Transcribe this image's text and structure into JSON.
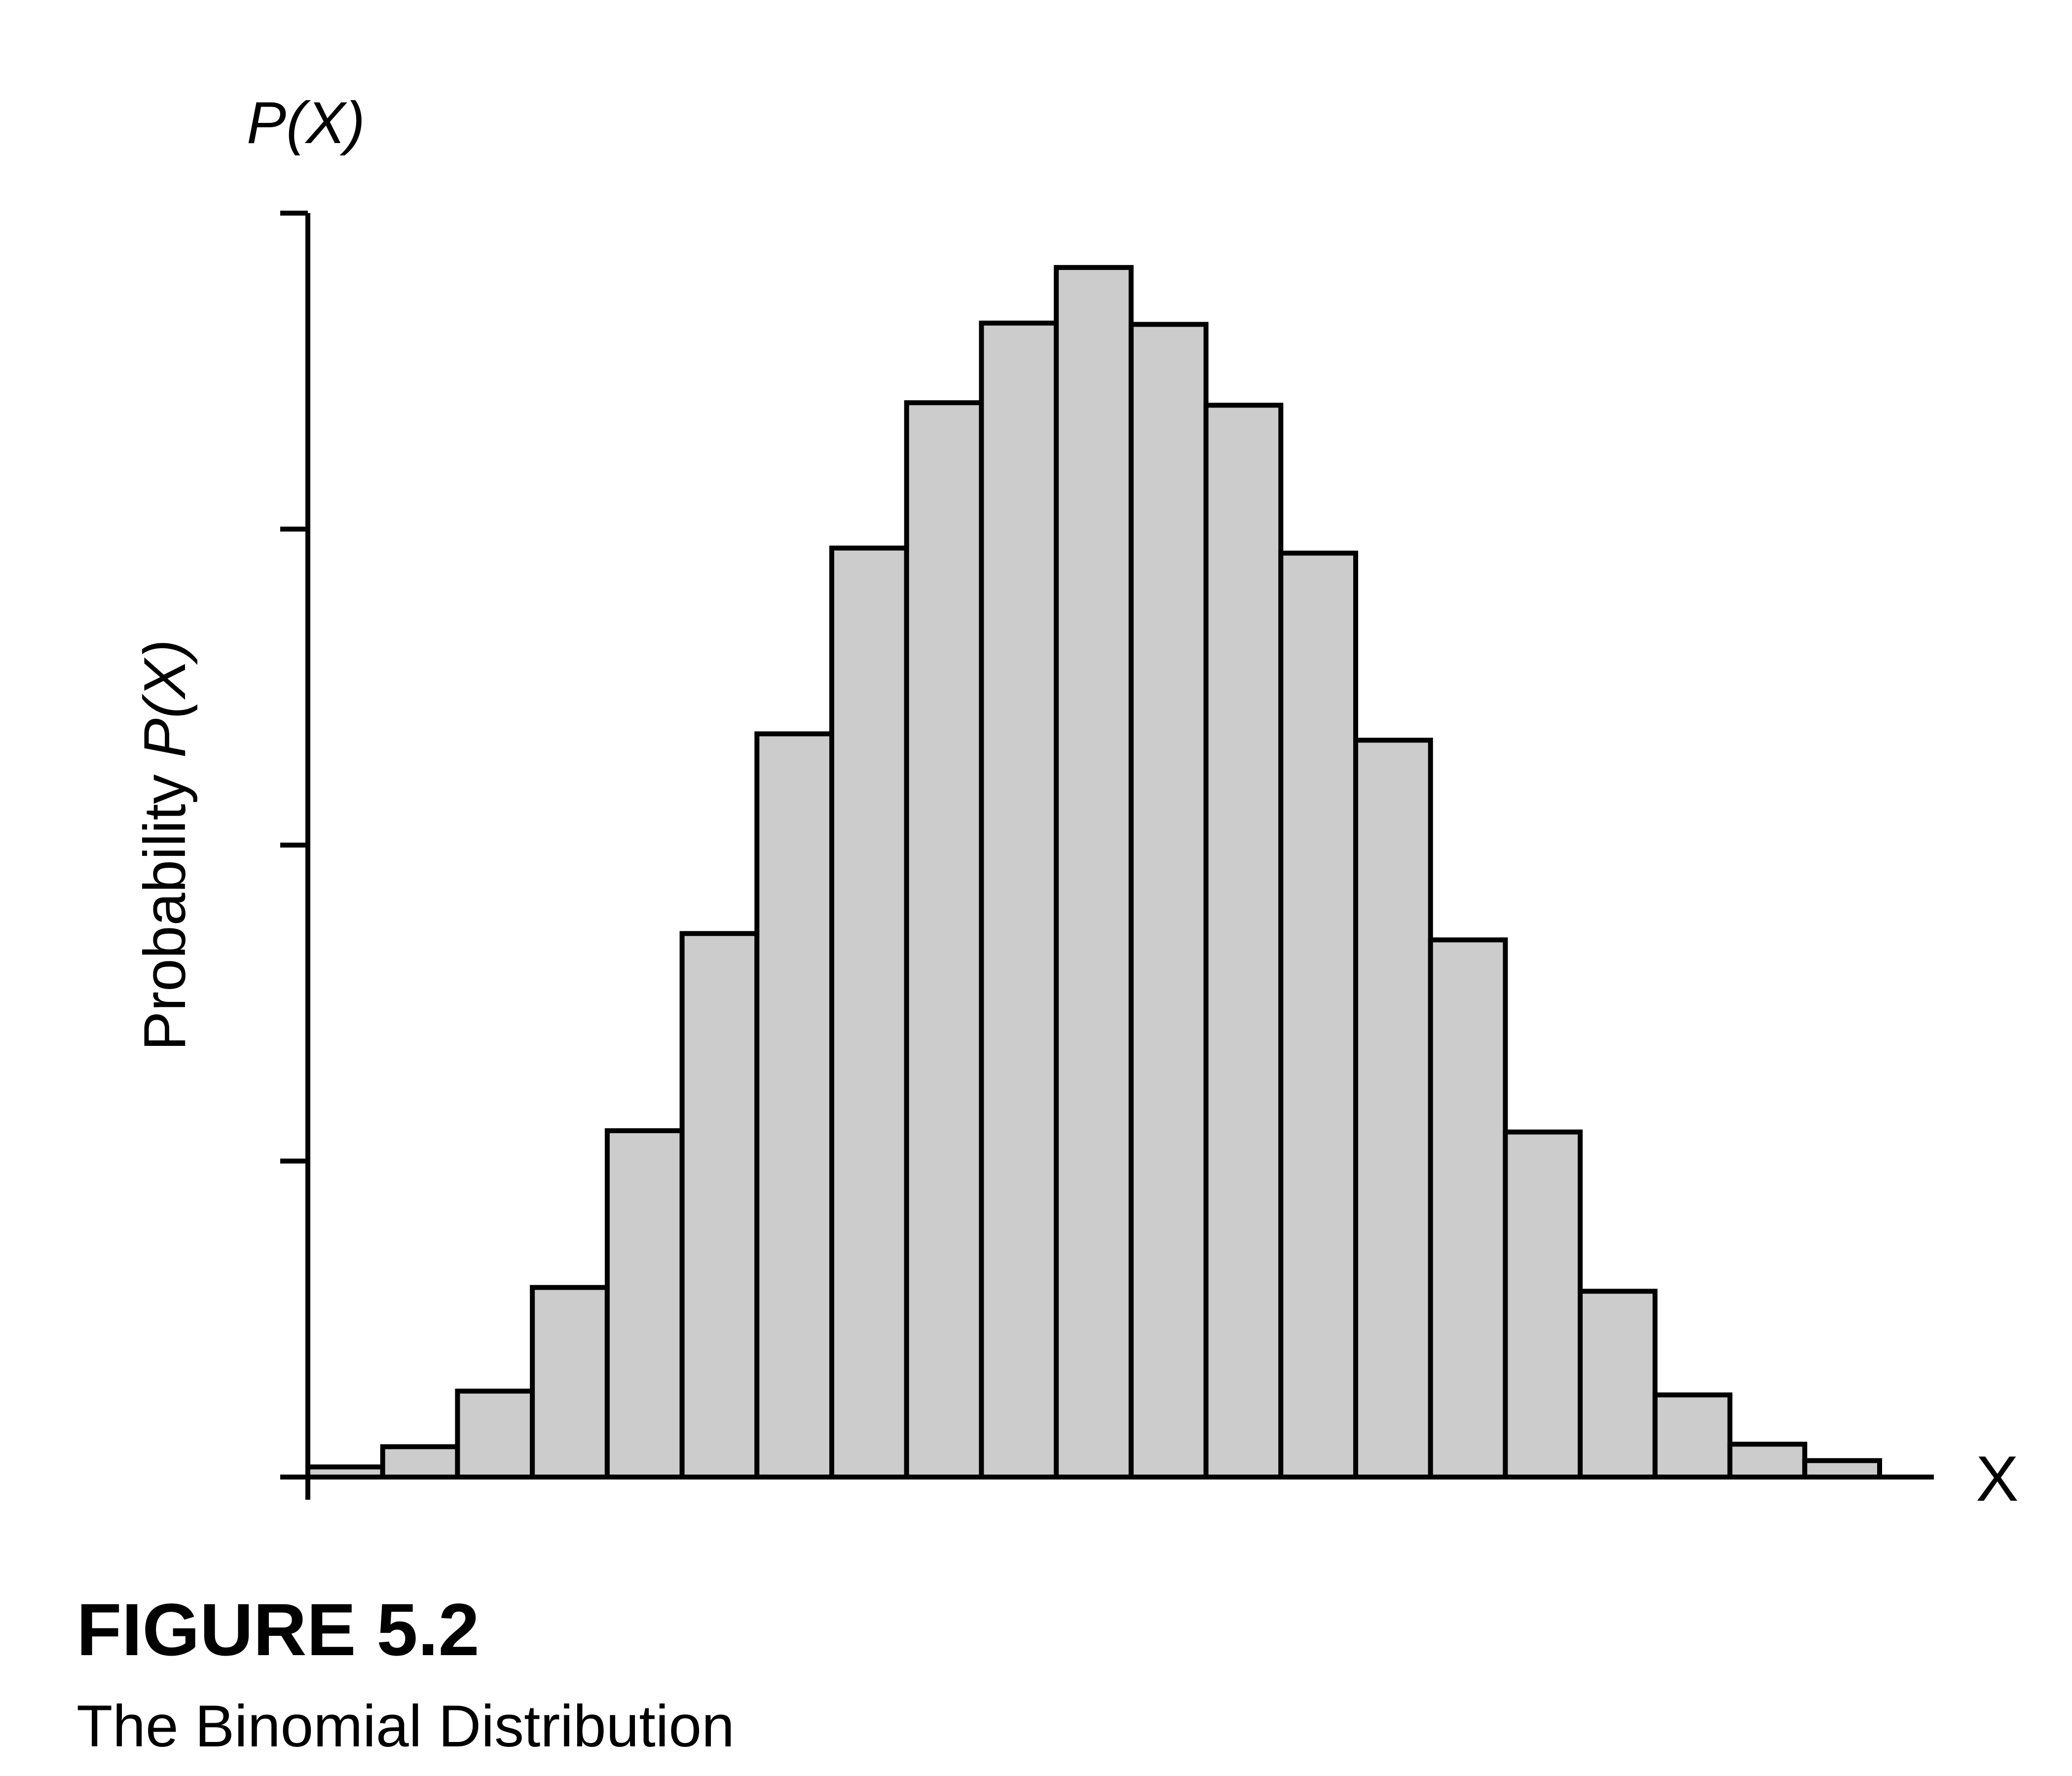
{
  "figure": {
    "label": "FIGURE 5.2",
    "caption": "The Binomial Distribution"
  },
  "chart_data": {
    "type": "bar",
    "ylabel_prefix": "Probability ",
    "ylabel_var": "P(X)",
    "y_axis_title": "P(X)",
    "x_axis_title": "X",
    "ylim": [
      0,
      1.0
    ],
    "y_ticks": [
      0,
      0.25,
      0.5,
      0.75,
      1.0
    ],
    "y_tick_labels_shown": false,
    "grid": false,
    "legend": "none",
    "bar_fill": "#cccccc",
    "bar_stroke": "#000000",
    "values": [
      0.008,
      0.024,
      0.068,
      0.15,
      0.274,
      0.43,
      0.588,
      0.735,
      0.85,
      0.913,
      0.957,
      0.912,
      0.848,
      0.731,
      0.583,
      0.425,
      0.273,
      0.147,
      0.065,
      0.026,
      0.013
    ]
  }
}
